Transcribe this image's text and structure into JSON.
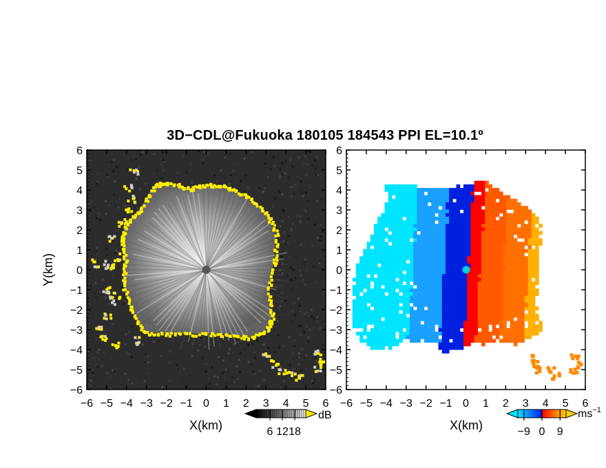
{
  "title": "3D−CDL@Fukuoka 180105 184543 PPI EL=10.1º",
  "chart_data": [
    {
      "type": "heatmap",
      "panel": "left",
      "description_quantity": "dB",
      "xlabel": "X(km)",
      "ylabel": "Y(km)",
      "xlim": [
        -6,
        6
      ],
      "ylim": [
        -6,
        6
      ],
      "xticks": [
        "−6",
        "−5",
        "−4",
        "−3",
        "−2",
        "−1",
        "0",
        "1",
        "2",
        "3",
        "4",
        "5",
        "6"
      ],
      "yticks": [
        "6",
        "5",
        "4",
        "3",
        "2",
        "1",
        "0",
        "−1",
        "−2",
        "−3",
        "−4",
        "−5",
        "−6"
      ],
      "grid": false,
      "center_marker": [
        0,
        0
      ],
      "echo_boundary_km": [
        [
          -4.0,
          4.9
        ],
        [
          -3.7,
          4.0
        ],
        [
          -3.9,
          3.0
        ],
        [
          -4.0,
          2.4
        ],
        [
          -4.3,
          1.6
        ],
        [
          -4.1,
          0.6
        ],
        [
          -4.2,
          -0.7
        ],
        [
          -4.6,
          -1.5
        ],
        [
          -5.0,
          -2.3
        ],
        [
          -5.4,
          -2.8
        ],
        [
          -5.3,
          -3.4
        ],
        [
          -4.6,
          -3.8
        ],
        [
          -3.4,
          -3.2
        ],
        [
          -2.0,
          -3.2
        ],
        [
          -0.4,
          -3.2
        ],
        [
          1.0,
          -3.2
        ],
        [
          2.2,
          -3.4
        ],
        [
          3.0,
          -3.0
        ],
        [
          3.4,
          -2.4
        ],
        [
          3.1,
          -1.0
        ],
        [
          3.5,
          0.8
        ],
        [
          3.6,
          1.8
        ],
        [
          3.0,
          2.9
        ],
        [
          2.0,
          3.7
        ],
        [
          1.0,
          4.2
        ],
        [
          0,
          4.3
        ],
        [
          -0.8,
          4.1
        ],
        [
          -1.0,
          4.0
        ],
        [
          -1.9,
          4.4
        ],
        [
          -2.5,
          4.3
        ],
        [
          -2.9,
          3.5
        ],
        [
          -3.7,
          2.9
        ],
        [
          -4.3,
          2.1
        ],
        [
          -4.2,
          0.6
        ],
        [
          -4.0,
          -0.7
        ],
        [
          -3.8,
          -2.0
        ],
        [
          -3.2,
          -3.1
        ],
        [
          -2.0,
          -3.2
        ],
        [
          -0.4,
          -3.2
        ],
        [
          1.0,
          -3.2
        ],
        [
          2.2,
          -3.4
        ],
        [
          3.0,
          -3.0
        ],
        [
          3.3,
          -2.4
        ],
        [
          3.1,
          -1.0
        ],
        [
          3.4,
          0.4
        ],
        [
          3.5,
          1.8
        ],
        [
          3.0,
          2.9
        ],
        [
          2.0,
          3.7
        ],
        [
          1.0,
          4.2
        ],
        [
          0.0,
          4.3
        ],
        [
          -0.9,
          4.1
        ],
        [
          -1.9,
          4.4
        ],
        [
          -2.6,
          4.3
        ]
      ],
      "outlier_clusters_km": [
        [
          [
            3.0,
            -4.3
          ],
          [
            3.4,
            -4.7
          ],
          [
            3.8,
            -5.0
          ],
          [
            4.2,
            -5.2
          ],
          [
            4.6,
            -5.3
          ]
        ],
        [
          [
            5.6,
            -4.2
          ],
          [
            5.8,
            -4.6
          ],
          [
            5.5,
            -4.9
          ]
        ],
        [
          [
            -5.6,
            0.4
          ],
          [
            -5.2,
            0.3
          ],
          [
            -4.8,
            0.2
          ]
        ],
        [
          [
            -5.1,
            -0.9
          ],
          [
            -4.8,
            -1.2
          ]
        ]
      ],
      "colorbar": {
        "label": "dB",
        "ticks": [
          6,
          12,
          18
        ],
        "tick_labels": [
          "6",
          "12",
          "18"
        ],
        "colors": [
          "#000000",
          "#ffffff"
        ],
        "extend": "both",
        "highlight_color": "#ffee00"
      }
    },
    {
      "type": "heatmap",
      "panel": "right",
      "description_quantity": "ms−1",
      "xlabel": "X(km)",
      "ylabel": "",
      "xlim": [
        -6,
        6
      ],
      "ylim": [
        -6,
        6
      ],
      "xticks": [
        "−6",
        "−5",
        "−4",
        "−3",
        "−2",
        "−1",
        "0",
        "1",
        "2",
        "3",
        "4",
        "5",
        "6"
      ],
      "yticks": [
        "6",
        "5",
        "4",
        "3",
        "2",
        "1",
        "0",
        "−1",
        "−2",
        "−3",
        "−4",
        "−5",
        "−6"
      ],
      "grid": false,
      "center_marker": [
        0,
        0
      ],
      "colorbar": {
        "label": "ms",
        "label_exponent": "−1",
        "ticks": [
          -9,
          0,
          9
        ],
        "tick_labels": [
          "−9",
          "0",
          "9"
        ],
        "vmin": -12,
        "vmax": 12,
        "colors": [
          "#00e5ff",
          "#0080ff",
          "#0020e0",
          "#ff0000",
          "#ff7000",
          "#ffd000"
        ],
        "extend": "both"
      },
      "colors": {
        "marker": "#00d0e0",
        "background": "#ffffff"
      }
    }
  ]
}
